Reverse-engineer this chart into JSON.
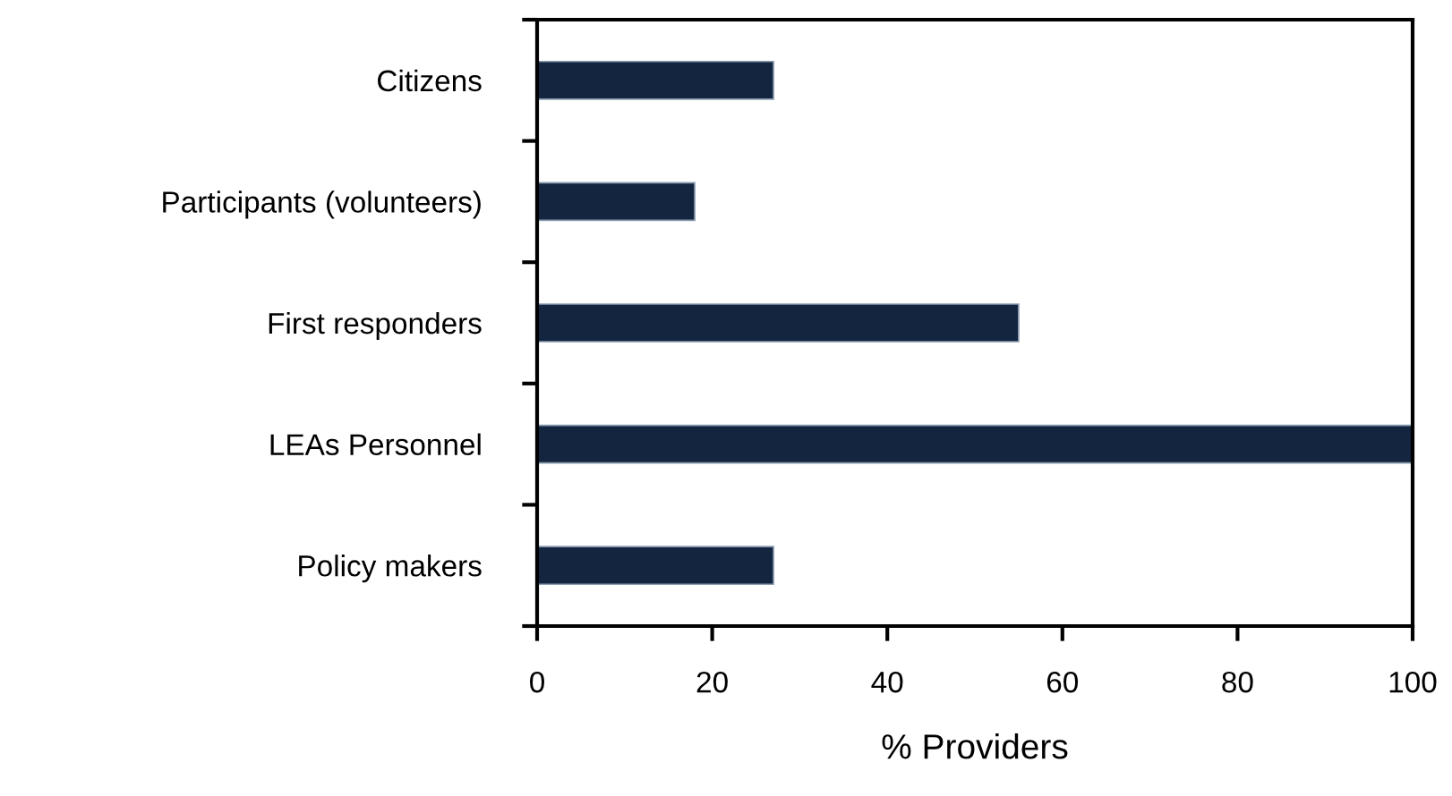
{
  "chart_data": {
    "type": "bar",
    "orientation": "horizontal",
    "xlabel": "% Providers",
    "categories": [
      "Citizens",
      "Participants (volunteers)",
      "First responders",
      "LEAs Personnel",
      "Policy makers"
    ],
    "values": [
      27,
      18,
      55,
      100,
      27
    ],
    "color": "#14263f",
    "xlim": [
      0,
      100
    ],
    "xticks": [
      0,
      20,
      40,
      60,
      80,
      100
    ],
    "grid": false,
    "legend": false
  }
}
